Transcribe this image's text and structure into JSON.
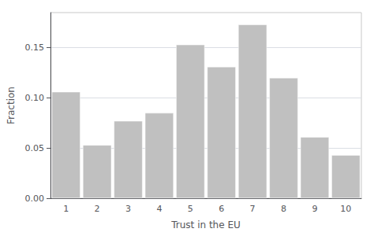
{
  "chart_data": {
    "type": "bar",
    "xlabel": "Trust in the EU",
    "ylabel": "Fraction",
    "categories": [
      1,
      2,
      3,
      4,
      5,
      6,
      7,
      8,
      9,
      10
    ],
    "values": [
      0.106,
      0.053,
      0.077,
      0.085,
      0.153,
      0.131,
      0.173,
      0.12,
      0.061,
      0.043
    ],
    "color": "#c0c0c0",
    "ylim": [
      0,
      0.185
    ],
    "yticks": [
      {
        "value": 0,
        "label": "0.00"
      },
      0.05,
      {
        "value": 0.1,
        "label": "0.10"
      },
      0.15
    ],
    "grid": true
  }
}
